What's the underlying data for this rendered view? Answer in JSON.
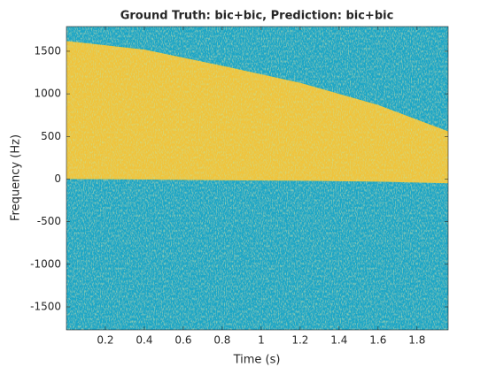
{
  "chart_data": {
    "type": "spectrogram",
    "title": "Ground Truth: bic+bic, Prediction: bic+bic",
    "x_label": "Time (s)",
    "y_label": "Frequency (Hz)",
    "xlim": [
      0,
      1.96
    ],
    "ylim": [
      -1770,
      1790
    ],
    "xticks": [
      0.2,
      0.4,
      0.6,
      0.8,
      1,
      1.2,
      1.4,
      1.6,
      1.8
    ],
    "yticks": [
      -1500,
      -1000,
      -500,
      0,
      500,
      1000,
      1500
    ],
    "background_color": "#1aa6c6",
    "signal_color": "#efc43c",
    "signal": {
      "x": [
        0,
        0.4,
        0.8,
        1.2,
        1.6,
        1.96
      ],
      "upper": [
        1620,
        1520,
        1330,
        1130,
        870,
        560
      ],
      "lower": [
        0,
        -5,
        -15,
        -20,
        -30,
        -50
      ]
    }
  }
}
